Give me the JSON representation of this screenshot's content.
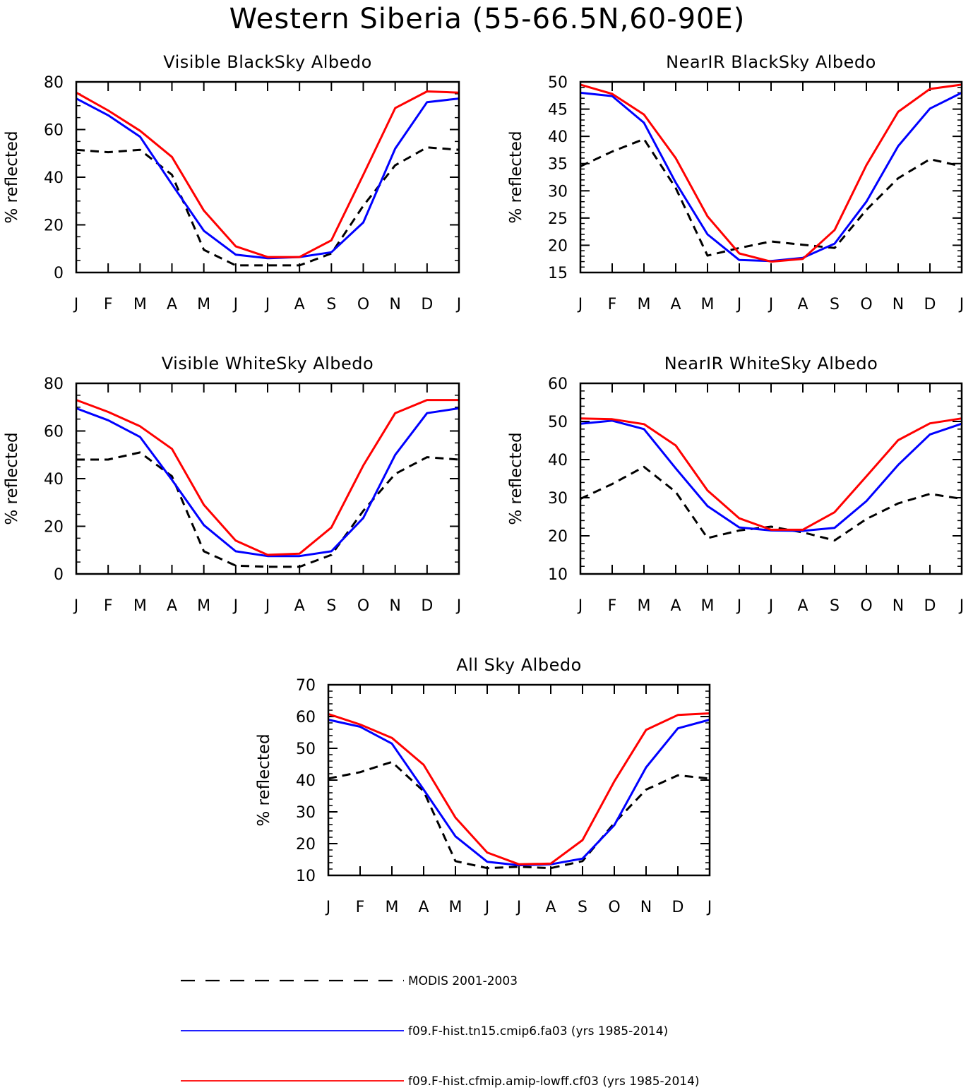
{
  "title": "Western Siberia (55-66.5N,60-90E)",
  "legend": [
    {
      "label": "MODIS 2001-2003",
      "color": "#000000",
      "dash": "dashed"
    },
    {
      "label": "f09.F-hist.tn15.cmip6.fa03 (yrs 1985-2014)",
      "color": "#0000ff",
      "dash": "solid"
    },
    {
      "label": "f09.F-hist.cfmip.amip-lowff.cf03 (yrs 1985-2014)",
      "color": "#ff0000",
      "dash": "solid"
    }
  ],
  "chart_data": [
    {
      "type": "line",
      "title": "Visible BlackSky Albedo",
      "ylabel": "% reflected",
      "categories": [
        "J",
        "F",
        "M",
        "A",
        "M",
        "J",
        "J",
        "A",
        "S",
        "O",
        "N",
        "D",
        "J"
      ],
      "ylim": [
        0,
        80
      ],
      "yticks": [
        0,
        20,
        40,
        60,
        80
      ],
      "series": [
        {
          "name": "MODIS 2001-2003",
          "color": "#000000",
          "dash": "dashed",
          "values": [
            51.5,
            50.5,
            51.5,
            41,
            9.5,
            3,
            3,
            3,
            8,
            28,
            45,
            52.5,
            51.5
          ]
        },
        {
          "name": "f09.F-hist.tn15.cmip6.fa03 (yrs 1985-2014)",
          "color": "#0000ff",
          "dash": "solid",
          "values": [
            73,
            66,
            57,
            37,
            17.5,
            7.5,
            6,
            6.5,
            8.5,
            21,
            52,
            71.5,
            73
          ]
        },
        {
          "name": "f09.F-hist.cfmip.amip-lowff.cf03 (yrs 1985-2014)",
          "color": "#ff0000",
          "dash": "solid",
          "values": [
            75.5,
            68,
            59.5,
            48.5,
            26,
            11,
            6.5,
            6.5,
            13.5,
            41,
            69,
            76,
            75.5
          ]
        }
      ]
    },
    {
      "type": "line",
      "title": "NearIR BlackSky Albedo",
      "ylabel": "% reflected",
      "categories": [
        "J",
        "F",
        "M",
        "A",
        "M",
        "J",
        "J",
        "A",
        "S",
        "O",
        "N",
        "D",
        "J"
      ],
      "ylim": [
        15,
        50
      ],
      "yticks": [
        15,
        20,
        25,
        30,
        35,
        40,
        45,
        50
      ],
      "series": [
        {
          "name": "MODIS 2001-2003",
          "color": "#000000",
          "dash": "dashed",
          "values": [
            34.5,
            37.2,
            39.5,
            30.5,
            18.1,
            19.5,
            20.7,
            20.1,
            19.5,
            26.5,
            32.3,
            35.8,
            34.5
          ]
        },
        {
          "name": "f09.F-hist.tn15.cmip6.fa03 (yrs 1985-2014)",
          "color": "#0000ff",
          "dash": "solid",
          "values": [
            48,
            47.4,
            42.5,
            31.5,
            22,
            17.3,
            17.1,
            17.7,
            20.3,
            28,
            38.2,
            45.1,
            48
          ]
        },
        {
          "name": "f09.F-hist.cfmip.amip-lowff.cf03 (yrs 1985-2014)",
          "color": "#ff0000",
          "dash": "solid",
          "values": [
            49.5,
            47.8,
            44,
            36,
            25.3,
            18.5,
            17,
            17.5,
            22.8,
            34.7,
            44.5,
            48.7,
            49.5
          ]
        }
      ]
    },
    {
      "type": "line",
      "title": "Visible WhiteSky Albedo",
      "ylabel": "% reflected",
      "categories": [
        "J",
        "F",
        "M",
        "A",
        "M",
        "J",
        "J",
        "A",
        "S",
        "O",
        "N",
        "D",
        "J"
      ],
      "ylim": [
        0,
        80
      ],
      "yticks": [
        0,
        20,
        40,
        60,
        80
      ],
      "series": [
        {
          "name": "MODIS 2001-2003",
          "color": "#000000",
          "dash": "dashed",
          "values": [
            48,
            48,
            51,
            41,
            9.5,
            3.5,
            3,
            3,
            8,
            26.5,
            42,
            49,
            48
          ]
        },
        {
          "name": "f09.F-hist.tn15.cmip6.fa03 (yrs 1985-2014)",
          "color": "#0000ff",
          "dash": "solid",
          "values": [
            69.5,
            64.5,
            57.5,
            39.5,
            20.5,
            9.5,
            7.5,
            7.5,
            9.5,
            23.5,
            50,
            67.5,
            69.5
          ]
        },
        {
          "name": "f09.F-hist.cfmip.amip-lowff.cf03 (yrs 1985-2014)",
          "color": "#ff0000",
          "dash": "solid",
          "values": [
            73,
            68,
            62,
            52.5,
            29,
            14,
            8,
            8.5,
            19.5,
            45.5,
            67.5,
            73,
            73
          ]
        }
      ]
    },
    {
      "type": "line",
      "title": "NearIR WhiteSky Albedo",
      "ylabel": "% reflected",
      "categories": [
        "J",
        "F",
        "M",
        "A",
        "M",
        "J",
        "J",
        "A",
        "S",
        "O",
        "N",
        "D",
        "J"
      ],
      "ylim": [
        10,
        60
      ],
      "yticks": [
        10,
        20,
        30,
        40,
        50,
        60
      ],
      "series": [
        {
          "name": "MODIS 2001-2003",
          "color": "#000000",
          "dash": "dashed",
          "values": [
            29.7,
            33.6,
            38.1,
            31.5,
            19.4,
            21.4,
            22.4,
            20.9,
            18.8,
            24.4,
            28.5,
            31,
            29.7
          ]
        },
        {
          "name": "f09.F-hist.tn15.cmip6.fa03 (yrs 1985-2014)",
          "color": "#0000ff",
          "dash": "solid",
          "values": [
            49.4,
            50.2,
            48,
            37.7,
            27.8,
            22.2,
            21.4,
            21.3,
            22.1,
            29.1,
            38.6,
            46.6,
            49.4
          ]
        },
        {
          "name": "f09.F-hist.cfmip.amip-lowff.cf03 (yrs 1985-2014)",
          "color": "#ff0000",
          "dash": "solid",
          "values": [
            50.8,
            50.6,
            49.3,
            43.7,
            31.9,
            24.6,
            21.6,
            21.6,
            26.2,
            35.6,
            45.1,
            49.5,
            50.8
          ]
        }
      ]
    },
    {
      "type": "line",
      "title": "All Sky Albedo",
      "ylabel": "% reflected",
      "categories": [
        "J",
        "F",
        "M",
        "A",
        "M",
        "J",
        "J",
        "A",
        "S",
        "O",
        "N",
        "D",
        "J"
      ],
      "ylim": [
        10,
        70
      ],
      "yticks": [
        10,
        20,
        30,
        40,
        50,
        60,
        70
      ],
      "series": [
        {
          "name": "MODIS 2001-2003",
          "color": "#000000",
          "dash": "dashed",
          "values": [
            40.5,
            42.5,
            45.7,
            36.5,
            14.5,
            12.3,
            12.7,
            12.3,
            14.5,
            26.5,
            37,
            41.5,
            40.5
          ]
        },
        {
          "name": "f09.F-hist.tn15.cmip6.fa03 (yrs 1985-2014)",
          "color": "#0000ff",
          "dash": "solid",
          "values": [
            59,
            56.8,
            51.5,
            37,
            22.3,
            14.3,
            13.2,
            13.5,
            15.3,
            25.8,
            44,
            56.3,
            59
          ]
        },
        {
          "name": "f09.F-hist.cfmip.amip-lowff.cf03 (yrs 1985-2014)",
          "color": "#ff0000",
          "dash": "solid",
          "values": [
            60.8,
            57.5,
            53.3,
            44.8,
            28.2,
            17.2,
            13.5,
            13.7,
            21.1,
            39.6,
            55.8,
            60.5,
            61
          ]
        }
      ]
    }
  ]
}
